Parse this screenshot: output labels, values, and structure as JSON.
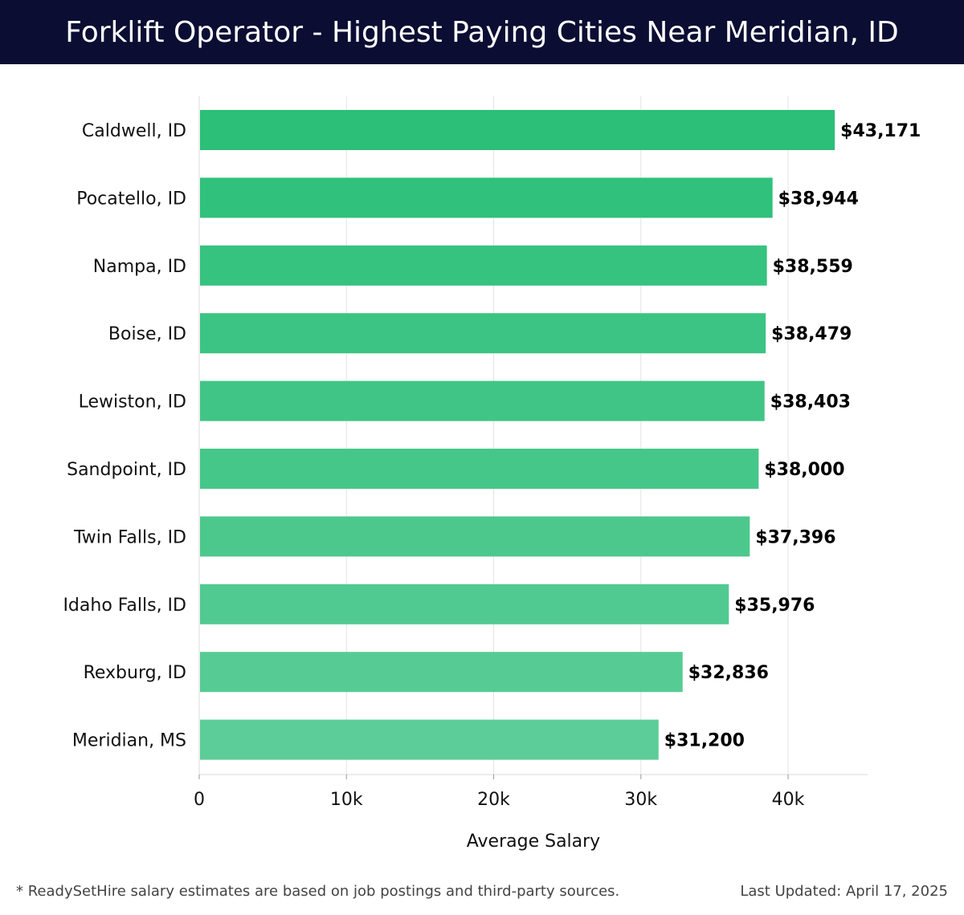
{
  "header": {
    "title": "Forklift Operator - Highest Paying Cities Near Meridian, ID"
  },
  "chart_data": {
    "type": "bar",
    "orientation": "horizontal",
    "title": "Forklift Operator - Highest Paying Cities Near Meridian, ID",
    "categories": [
      "Caldwell, ID",
      "Pocatello, ID",
      "Nampa, ID",
      "Boise, ID",
      "Lewiston, ID",
      "Sandpoint, ID",
      "Twin Falls, ID",
      "Idaho Falls, ID",
      "Rexburg, ID",
      "Meridian, MS"
    ],
    "values": [
      43171,
      38944,
      38559,
      38479,
      38403,
      38000,
      37396,
      35976,
      32836,
      31200
    ],
    "value_labels": [
      "$43,171",
      "$38,944",
      "$38,559",
      "$38,479",
      "$38,403",
      "$38,000",
      "$37,396",
      "$35,976",
      "$32,836",
      "$31,200"
    ],
    "xlabel": "Average Salary",
    "ylabel": "",
    "xlim": [
      0,
      45400
    ],
    "xticks": [
      0,
      10000,
      20000,
      30000,
      40000
    ],
    "xtick_labels": [
      "0",
      "10k",
      "20k",
      "30k",
      "40k"
    ],
    "grid": true,
    "bar_color_top": "#2bbf78",
    "bar_color_bottom": "#5ccd98"
  },
  "footer": {
    "note": "* ReadySetHire salary estimates are based on job postings and third-party sources.",
    "updated": "Last Updated: April 17, 2025"
  }
}
